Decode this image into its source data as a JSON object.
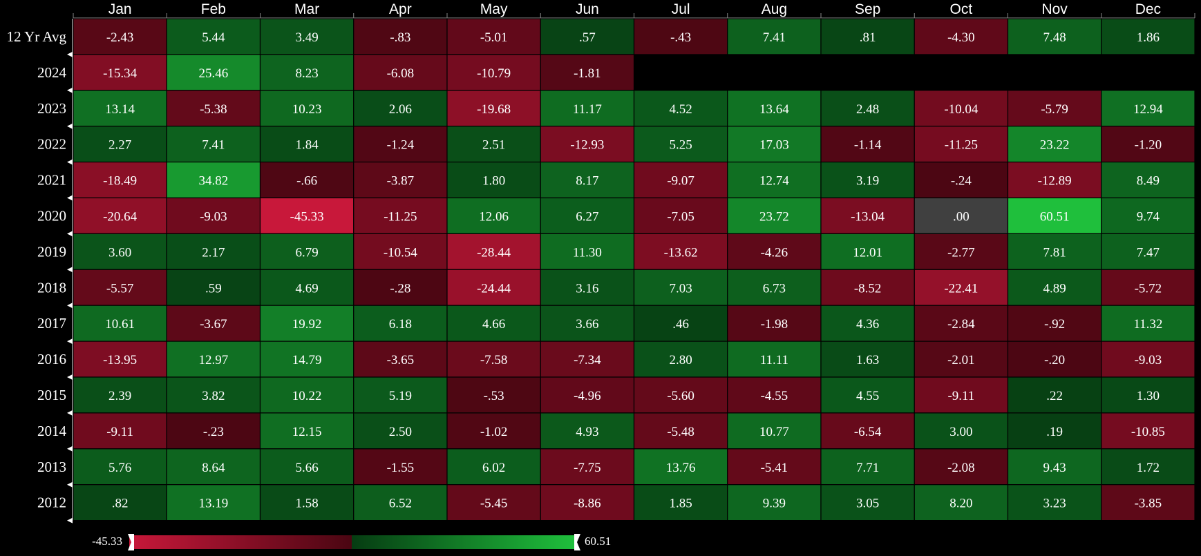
{
  "chart_data": {
    "type": "heatmap",
    "columns": [
      "Jan",
      "Feb",
      "Mar",
      "Apr",
      "May",
      "Jun",
      "Jul",
      "Aug",
      "Sep",
      "Oct",
      "Nov",
      "Dec"
    ],
    "rows": [
      {
        "label": "12 Yr Avg",
        "values": [
          -2.43,
          5.44,
          3.49,
          -0.83,
          -5.01,
          0.57,
          -0.43,
          7.41,
          0.81,
          -4.3,
          7.48,
          1.86
        ],
        "labels": [
          "-2.43",
          "5.44",
          "3.49",
          "-.83",
          "-5.01",
          ".57",
          "-.43",
          "7.41",
          ".81",
          "-4.30",
          "7.48",
          "1.86"
        ]
      },
      {
        "label": "2024",
        "values": [
          -15.34,
          25.46,
          8.23,
          -6.08,
          -10.79,
          -1.81,
          null,
          null,
          null,
          null,
          null,
          null
        ],
        "labels": [
          "-15.34",
          "25.46",
          "8.23",
          "-6.08",
          "-10.79",
          "-1.81",
          "",
          "",
          "",
          "",
          "",
          ""
        ]
      },
      {
        "label": "2023",
        "values": [
          13.14,
          -5.38,
          10.23,
          2.06,
          -19.68,
          11.17,
          4.52,
          13.64,
          2.48,
          -10.04,
          -5.79,
          12.94
        ],
        "labels": [
          "13.14",
          "-5.38",
          "10.23",
          "2.06",
          "-19.68",
          "11.17",
          "4.52",
          "13.64",
          "2.48",
          "-10.04",
          "-5.79",
          "12.94"
        ]
      },
      {
        "label": "2022",
        "values": [
          2.27,
          7.41,
          1.84,
          -1.24,
          2.51,
          -12.93,
          5.25,
          17.03,
          -1.14,
          -11.25,
          23.22,
          -1.2
        ],
        "labels": [
          "2.27",
          "7.41",
          "1.84",
          "-1.24",
          "2.51",
          "-12.93",
          "5.25",
          "17.03",
          "-1.14",
          "-11.25",
          "23.22",
          "-1.20"
        ]
      },
      {
        "label": "2021",
        "values": [
          -18.49,
          34.82,
          -0.66,
          -3.87,
          1.8,
          8.17,
          -9.07,
          12.74,
          3.19,
          -0.24,
          -12.89,
          8.49
        ],
        "labels": [
          "-18.49",
          "34.82",
          "-.66",
          "-3.87",
          "1.80",
          "8.17",
          "-9.07",
          "12.74",
          "3.19",
          "-.24",
          "-12.89",
          "8.49"
        ]
      },
      {
        "label": "2020",
        "values": [
          -20.64,
          -9.03,
          -45.33,
          -11.25,
          12.06,
          6.27,
          -7.05,
          23.72,
          -13.04,
          0.0,
          60.51,
          9.74
        ],
        "labels": [
          "-20.64",
          "-9.03",
          "-45.33",
          "-11.25",
          "12.06",
          "6.27",
          "-7.05",
          "23.72",
          "-13.04",
          ".00",
          "60.51",
          "9.74"
        ]
      },
      {
        "label": "2019",
        "values": [
          3.6,
          2.17,
          6.79,
          -10.54,
          -28.44,
          11.3,
          -13.62,
          -4.26,
          12.01,
          -2.77,
          7.81,
          7.47
        ],
        "labels": [
          "3.60",
          "2.17",
          "6.79",
          "-10.54",
          "-28.44",
          "11.30",
          "-13.62",
          "-4.26",
          "12.01",
          "-2.77",
          "7.81",
          "7.47"
        ]
      },
      {
        "label": "2018",
        "values": [
          -5.57,
          0.59,
          4.69,
          -0.28,
          -24.44,
          3.16,
          7.03,
          6.73,
          -8.52,
          -22.41,
          4.89,
          -5.72
        ],
        "labels": [
          "-5.57",
          ".59",
          "4.69",
          "-.28",
          "-24.44",
          "3.16",
          "7.03",
          "6.73",
          "-8.52",
          "-22.41",
          "4.89",
          "-5.72"
        ]
      },
      {
        "label": "2017",
        "values": [
          10.61,
          -3.67,
          19.92,
          6.18,
          4.66,
          3.66,
          0.46,
          -1.98,
          4.36,
          -2.84,
          -0.92,
          11.32
        ],
        "labels": [
          "10.61",
          "-3.67",
          "19.92",
          "6.18",
          "4.66",
          "3.66",
          ".46",
          "-1.98",
          "4.36",
          "-2.84",
          "-.92",
          "11.32"
        ]
      },
      {
        "label": "2016",
        "values": [
          -13.95,
          12.97,
          14.79,
          -3.65,
          -7.58,
          -7.34,
          2.8,
          11.11,
          1.63,
          -2.01,
          -0.2,
          -9.03
        ],
        "labels": [
          "-13.95",
          "12.97",
          "14.79",
          "-3.65",
          "-7.58",
          "-7.34",
          "2.80",
          "11.11",
          "1.63",
          "-2.01",
          "-.20",
          "-9.03"
        ]
      },
      {
        "label": "2015",
        "values": [
          2.39,
          3.82,
          10.22,
          5.19,
          -0.53,
          -4.96,
          -5.6,
          -4.55,
          4.55,
          -9.11,
          0.22,
          1.3
        ],
        "labels": [
          "2.39",
          "3.82",
          "10.22",
          "5.19",
          "-.53",
          "-4.96",
          "-5.60",
          "-4.55",
          "4.55",
          "-9.11",
          ".22",
          "1.30"
        ]
      },
      {
        "label": "2014",
        "values": [
          -9.11,
          -0.23,
          12.15,
          2.5,
          -1.02,
          4.93,
          -5.48,
          10.77,
          -6.54,
          3.0,
          0.19,
          -10.85
        ],
        "labels": [
          "-9.11",
          "-.23",
          "12.15",
          "2.50",
          "-1.02",
          "4.93",
          "-5.48",
          "10.77",
          "-6.54",
          "3.00",
          ".19",
          "-10.85"
        ]
      },
      {
        "label": "2013",
        "values": [
          5.76,
          8.64,
          5.66,
          -1.55,
          6.02,
          -7.75,
          13.76,
          -5.41,
          7.71,
          -2.08,
          9.43,
          1.72
        ],
        "labels": [
          "5.76",
          "8.64",
          "5.66",
          "-1.55",
          "6.02",
          "-7.75",
          "13.76",
          "-5.41",
          "7.71",
          "-2.08",
          "9.43",
          "1.72"
        ]
      },
      {
        "label": "2012",
        "values": [
          0.82,
          13.19,
          1.58,
          6.52,
          -5.45,
          -8.86,
          1.85,
          9.39,
          3.05,
          8.2,
          3.23,
          -3.85
        ],
        "labels": [
          ".82",
          "13.19",
          "1.58",
          "6.52",
          "-5.45",
          "-8.86",
          "1.85",
          "9.39",
          "3.05",
          "8.20",
          "3.23",
          "-3.85"
        ]
      }
    ],
    "scale": {
      "min": -45.33,
      "max": 60.51,
      "min_label": "-45.33",
      "max_label": "60.51"
    },
    "colors": {
      "neg_light": "#c8183a",
      "neg_dark": "#4a0612",
      "pos_dark": "#063c12",
      "pos_light": "#1fbf3c",
      "zero": "#404040",
      "background": "#000000",
      "grid": "#000000"
    }
  }
}
